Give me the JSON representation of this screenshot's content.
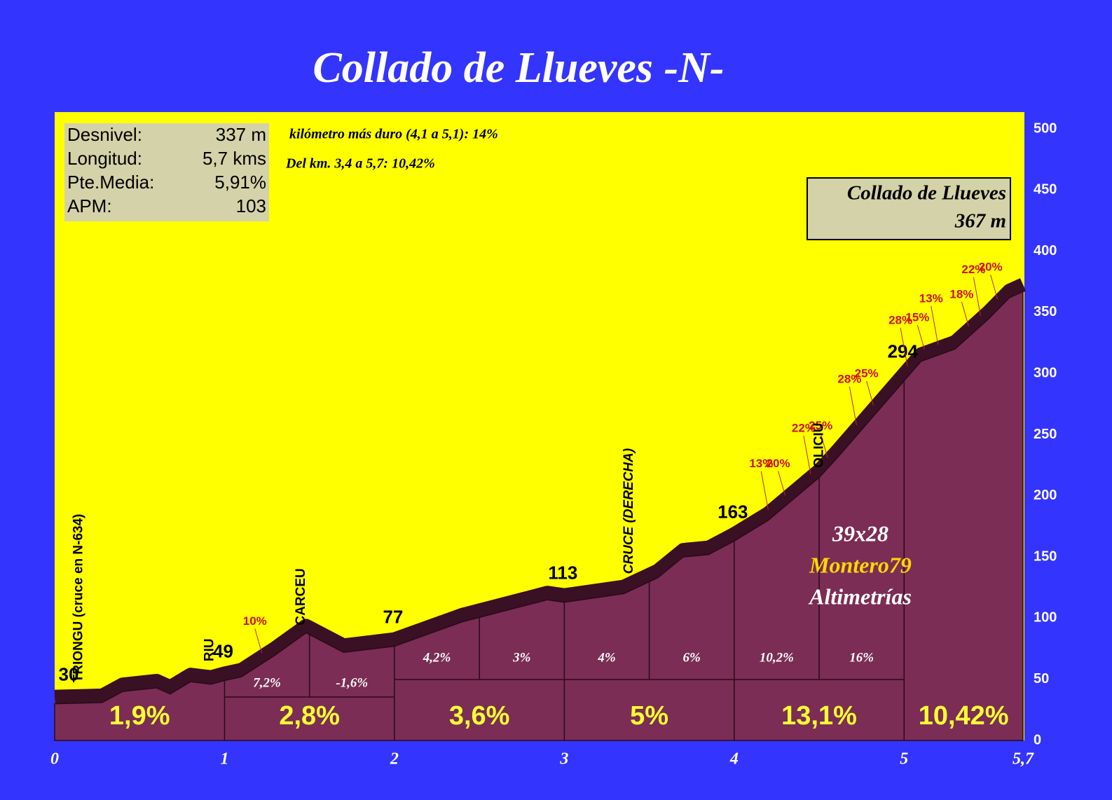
{
  "chart_data": {
    "type": "area",
    "title": "Collado de Llueves -N-",
    "x": [
      0,
      0.28,
      0.4,
      0.6,
      0.68,
      0.8,
      0.92,
      1,
      1.1,
      1.3,
      1.48,
      1.7,
      2,
      2.4,
      2.9,
      3,
      3.35,
      3.55,
      3.7,
      3.85,
      4,
      4.2,
      4.5,
      4.6,
      4.8,
      5,
      5.1,
      5.3,
      5.5,
      5.62,
      5.7
    ],
    "values": [
      30,
      31,
      40,
      43,
      38,
      48,
      46,
      49,
      52,
      70,
      88,
      72,
      77,
      97,
      115,
      113,
      120,
      133,
      150,
      152,
      163,
      180,
      215,
      230,
      262,
      294,
      310,
      320,
      345,
      362,
      367
    ],
    "xlim": [
      0,
      5.7
    ],
    "xticks": [
      0,
      1,
      2,
      3,
      4,
      5,
      {
        "value": 5.7,
        "label": "5,7"
      }
    ],
    "ylim": [
      0,
      500
    ],
    "yticks": [
      0,
      50,
      100,
      150,
      200,
      250,
      300,
      350,
      400,
      450,
      500
    ],
    "color": "#7b2d55",
    "stats": [
      [
        "Desnivel:",
        "337 m"
      ],
      [
        "Longitud:",
        "5,7 kms"
      ],
      [
        "Pte.Media:",
        "5,91%"
      ],
      [
        "APM:",
        "103"
      ]
    ],
    "notes": [
      "kilómetro más duro (4,1 a 5,1): 14%",
      "Del km. 3,4 a 5,7:  10,42%"
    ],
    "summit": [
      "Collado de Llueves",
      "367 m"
    ],
    "credits": [
      "39x28",
      "Montero79",
      "Altimetrías"
    ],
    "gradients": [
      {
        "from": 0,
        "to": 1,
        "label": "1,9%"
      },
      {
        "from": 1,
        "to": 2,
        "label": "2,8%"
      },
      {
        "from": 2,
        "to": 3,
        "label": "3,6%"
      },
      {
        "from": 3,
        "to": 4,
        "label": "5%"
      },
      {
        "from": 4,
        "to": 5,
        "label": "13,1%"
      },
      {
        "from": 5,
        "to": 5.7,
        "label": "10,42%"
      }
    ],
    "half_gradients": [
      {
        "from": 1,
        "to": 1.5,
        "label": "7,2%"
      },
      {
        "from": 1.5,
        "to": 2,
        "label": "-1,6%"
      },
      {
        "from": 2,
        "to": 2.5,
        "label": "4,2%"
      },
      {
        "from": 2.5,
        "to": 3,
        "label": "3%"
      },
      {
        "from": 3,
        "to": 3.5,
        "label": "4%"
      },
      {
        "from": 3.5,
        "to": 4,
        "label": "6%"
      },
      {
        "from": 4,
        "to": 4.5,
        "label": "10,2%"
      },
      {
        "from": 4.5,
        "to": 5,
        "label": "16%"
      }
    ],
    "steep_points": [
      {
        "x": 1.22,
        "label": "10%"
      },
      {
        "x": 4.2,
        "label": "13%"
      },
      {
        "x": 4.3,
        "label": "20%"
      },
      {
        "x": 4.45,
        "label": "22%"
      },
      {
        "x": 4.55,
        "label": "25%"
      },
      {
        "x": 4.72,
        "label": "28%"
      },
      {
        "x": 4.82,
        "label": "25%"
      },
      {
        "x": 5.02,
        "label": "28%"
      },
      {
        "x": 5.12,
        "label": "15%"
      },
      {
        "x": 5.2,
        "label": "13%"
      },
      {
        "x": 5.38,
        "label": "18%"
      },
      {
        "x": 5.45,
        "label": "22%"
      },
      {
        "x": 5.55,
        "label": "20%"
      }
    ],
    "places": [
      {
        "x": 0.06,
        "label": "TRIONGU (cruce en N-634)"
      },
      {
        "x": 0.83,
        "label": "RIU"
      },
      {
        "x": 1.37,
        "label": "CARCEU"
      },
      {
        "x": 3.3,
        "label": "CRUCE (DERECHA)"
      },
      {
        "x": 4.42,
        "label": "OLICIU"
      }
    ]
  }
}
